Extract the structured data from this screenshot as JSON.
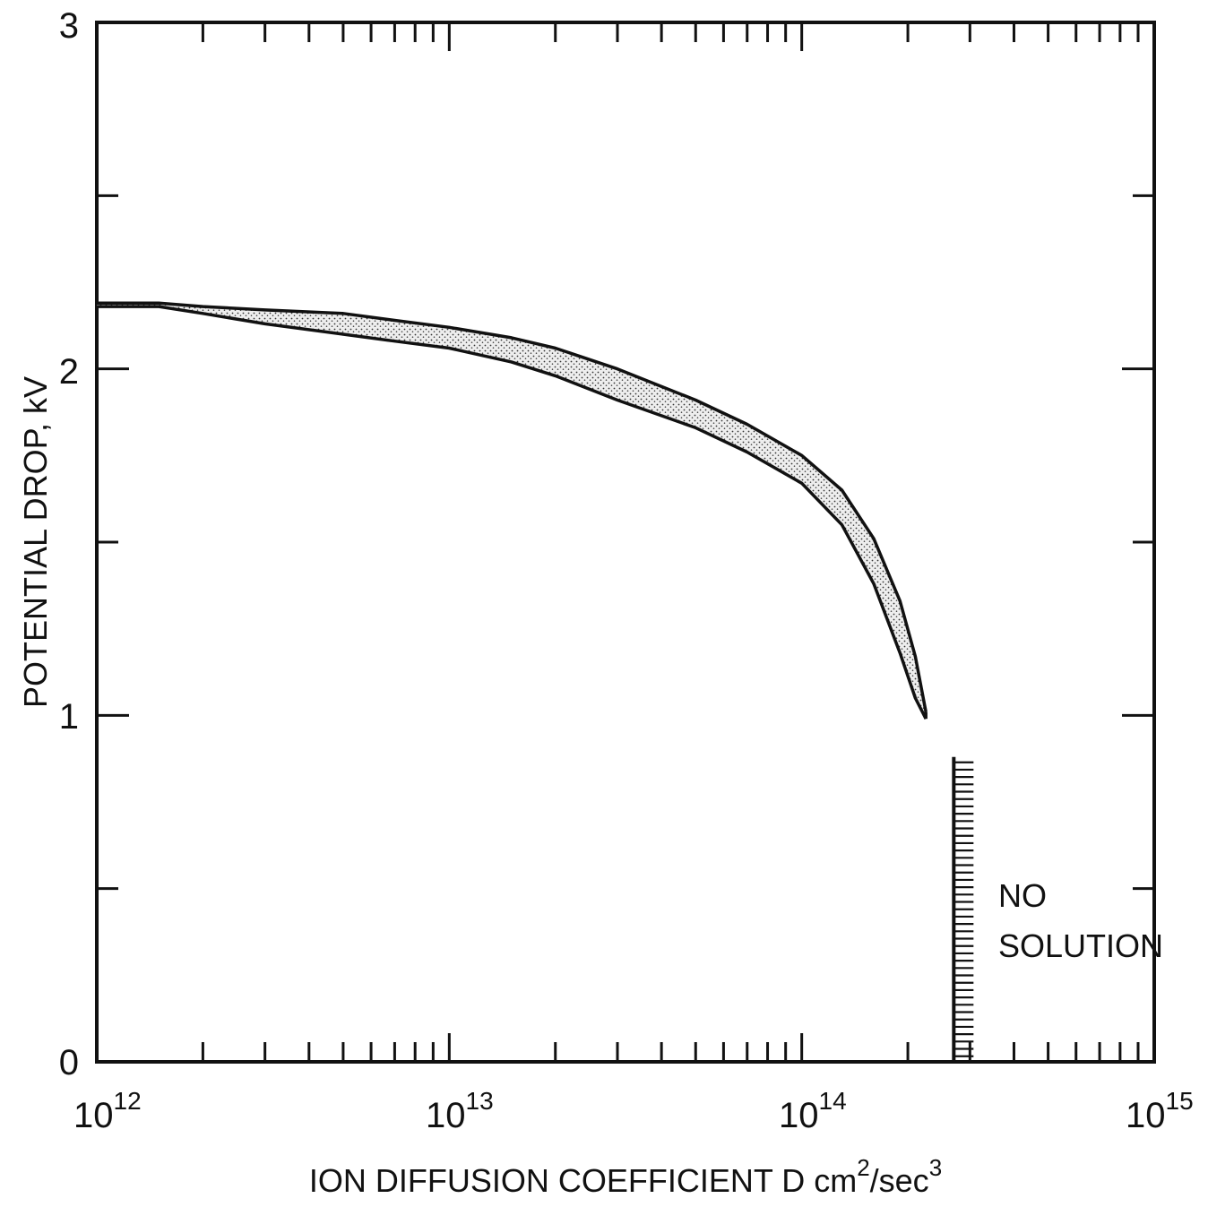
{
  "chart_data": {
    "type": "area",
    "title": "",
    "xlabel": {
      "text": "ION DIFFUSION COEFFICIENT D cm",
      "sup1": "2",
      "mid": "/sec",
      "sup2": "3"
    },
    "ylabel": "POTENTIAL DROP, kV",
    "x_scale": "log",
    "xlim": [
      1000000000000.0,
      1000000000000000.0
    ],
    "ylim": [
      0,
      3
    ],
    "grid": false,
    "x_ticklabels": [
      {
        "base": "10",
        "exp": "12",
        "value": 1000000000000.0
      },
      {
        "base": "10",
        "exp": "13",
        "value": 10000000000000.0
      },
      {
        "base": "10",
        "exp": "14",
        "value": 100000000000000.0
      },
      {
        "base": "10",
        "exp": "15",
        "value": 1000000000000000.0
      }
    ],
    "y_ticklabels": [
      {
        "label": "0",
        "value": 0
      },
      {
        "label": "1",
        "value": 1
      },
      {
        "label": "2",
        "value": 2
      },
      {
        "label": "3",
        "value": 3
      }
    ],
    "y_minor_ticks": [
      0.5,
      1.5,
      2.5
    ],
    "band": {
      "x": [
        1000000000000.0,
        1500000000000.0,
        2000000000000.0,
        3000000000000.0,
        5000000000000.0,
        7000000000000.0,
        10000000000000.0,
        15000000000000.0,
        20000000000000.0,
        30000000000000.0,
        50000000000000.0,
        70000000000000.0,
        100000000000000.0,
        130000000000000.0,
        160000000000000.0,
        190000000000000.0,
        210000000000000.0,
        225000000000000.0
      ],
      "y_upper": [
        2.19,
        2.19,
        2.18,
        2.17,
        2.16,
        2.14,
        2.12,
        2.09,
        2.06,
        2.0,
        1.91,
        1.84,
        1.75,
        1.65,
        1.51,
        1.33,
        1.17,
        1.01
      ],
      "y_lower": [
        2.18,
        2.18,
        2.16,
        2.13,
        2.1,
        2.08,
        2.06,
        2.02,
        1.98,
        1.91,
        1.83,
        1.76,
        1.67,
        1.55,
        1.38,
        1.18,
        1.05,
        0.99
      ]
    },
    "no_solution": {
      "x": 270000000000000.0,
      "y_top": 0.88,
      "label_lines": [
        "NO",
        "SOLUTION"
      ]
    }
  }
}
